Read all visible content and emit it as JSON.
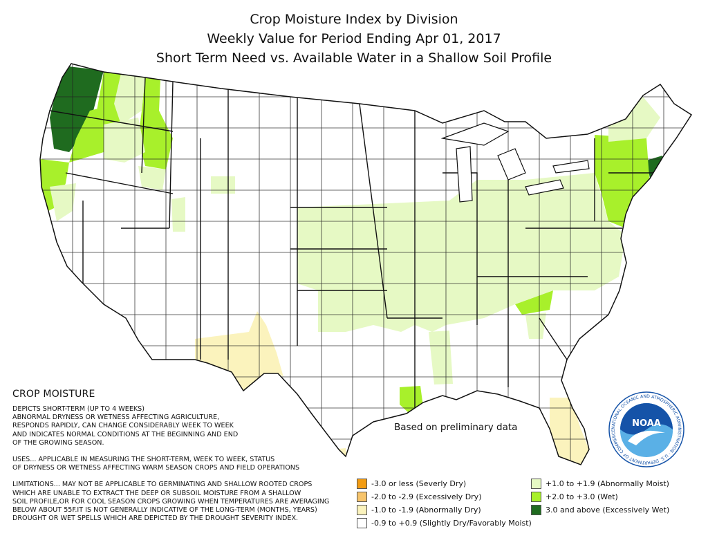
{
  "title": {
    "line1": "Crop Moisture Index by Division",
    "line2": "Weekly Value for Period Ending Apr 01, 2017",
    "line3": "Short Term Need vs. Available Water in a Shallow Soil Profile"
  },
  "crop_moisture": {
    "heading": "CROP MOISTURE",
    "depicts": "DEPICTS SHORT-TERM (UP TO 4 WEEKS)\nABNORMAL DRYNESS OR WETNESS AFFECTING AGRICULTURE,\nRESPONDS RAPIDLY, CAN CHANGE CONSIDERABLY WEEK TO WEEK\nAND INDICATES NORMAL CONDITIONS AT THE BEGINNING AND END\nOF THE GROWING SEASON.",
    "uses": "USES... APPLICABLE IN MEASURING THE SHORT-TERM, WEEK TO WEEK, STATUS\nOF DRYNESS OR WETNESS AFFECTING WARM SEASON CROPS AND FIELD OPERATIONS",
    "limitations": "LIMITATIONS... MAY NOT BE APPLICABLE TO GERMINATING AND SHALLOW ROOTED CROPS\nWHICH ARE UNABLE TO EXTRACT THE DEEP OR SUBSOIL MOISTURE FROM A SHALLOW\nSOIL PROFILE,OR FOR COOL SEASON CROPS GROWING WHEN TEMPERATURES ARE AVERAGING\nBELOW ABOUT 55F.IT IS NOT GENERALLY INDICATIVE OF THE LONG-TERM (MONTHS, YEARS)\nDROUGHT OR WET SPELLS WHICH ARE DEPICTED BY THE DROUGHT SEVERITY INDEX."
  },
  "note": "Based on preliminary data",
  "legend": {
    "left": [
      {
        "label": "-3.0 or less (Severly Dry)",
        "color": "#f39c12"
      },
      {
        "label": "-2.0 to -2.9 (Excessively Dry)",
        "color": "#f7c46b"
      },
      {
        "label": "-1.0 to -1.9 (Abnormally Dry)",
        "color": "#fbf3bd"
      },
      {
        "label": "-0.9 to +0.9 (Slightly Dry/Favorably Moist)",
        "color": "#ffffff"
      }
    ],
    "right": [
      {
        "label": "+1.0 to +1.9 (Abnormally Moist)",
        "color": "#e6f9c4"
      },
      {
        "label": "+2.0 to +3.0 (Wet)",
        "color": "#a8f02b"
      },
      {
        "label": "3.0 and above (Excessively Wet)",
        "color": "#1f6b1f"
      }
    ]
  },
  "logo": {
    "text": "NOAA",
    "ring_text": "NATIONAL OCEANIC AND ATMOSPHERIC ADMINISTRATION · U.S. DEPARTMENT OF COMMERCE ·"
  },
  "colors": {
    "border": "#222222",
    "dry1": "#fbf3bd",
    "moist1": "#e6f9c4",
    "wet": "#a8f02b",
    "excessively_wet": "#1f6b1f",
    "noaa_blue": "#1553a8",
    "noaa_sky": "#5ab0e6"
  }
}
